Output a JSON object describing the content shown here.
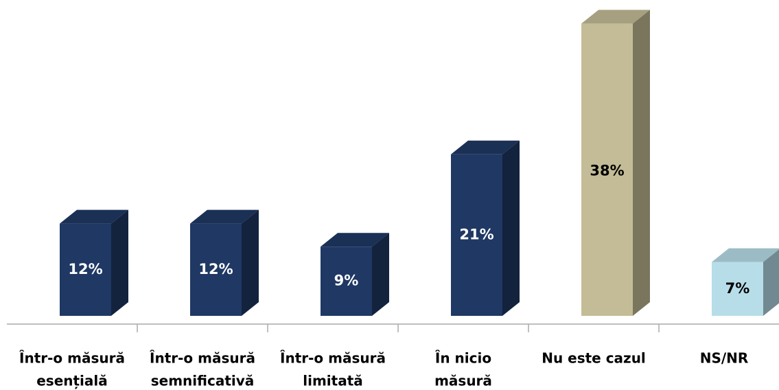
{
  "chart_data": {
    "type": "bar3d",
    "categories": [
      [
        "Într-o măsură",
        "esențială"
      ],
      [
        "Într-o măsură",
        "semnificativă"
      ],
      [
        "Într-o măsură",
        "limitată"
      ],
      [
        "În nicio",
        "măsură"
      ],
      [
        "Nu este cazul"
      ],
      [
        "NS/NR"
      ]
    ],
    "values": [
      12,
      12,
      9,
      21,
      38,
      7
    ],
    "value_labels": [
      "12%",
      "12%",
      "9%",
      "21%",
      "38%",
      "7%"
    ],
    "colors": [
      "#1f3864",
      "#1f3864",
      "#1f3864",
      "#1f3864",
      "#c4bc96",
      "#b7dde8"
    ],
    "ylim": [
      0,
      40
    ]
  }
}
